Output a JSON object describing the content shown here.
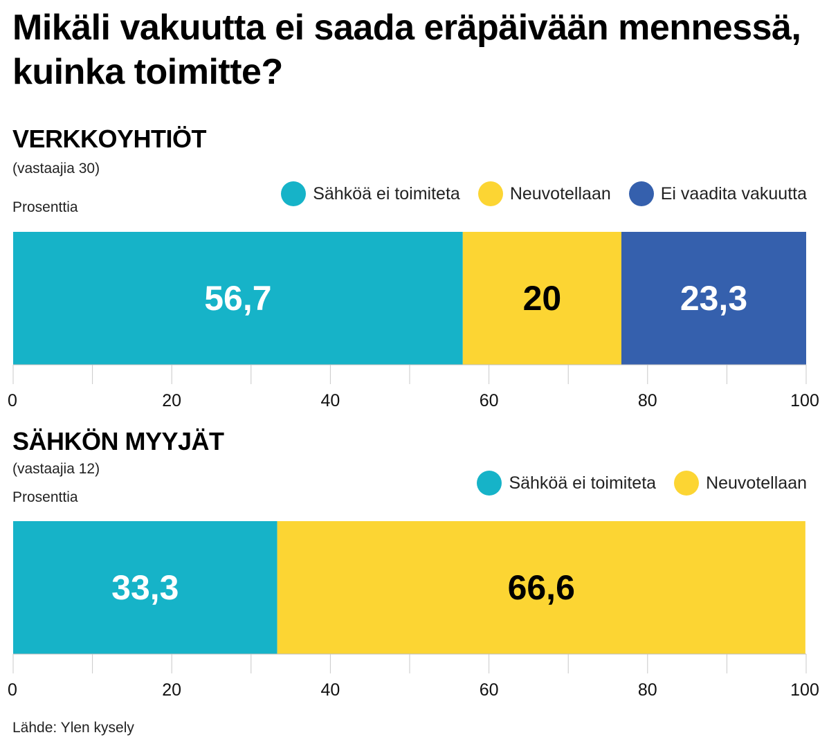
{
  "title": "Mikäli vakuutta ei saada eräpäivään mennessä, kuinka toimitte?",
  "source": "Lähde: Ylen kysely",
  "colors": {
    "teal": "#16b3c8",
    "yellow": "#fcd533",
    "blue": "#3560ad"
  },
  "chart_data": [
    {
      "type": "bar",
      "orientation": "horizontal-stacked",
      "title": "VERKKOYHTIÖT",
      "subtitle": "(vastaajia 30)",
      "xlabel": "Prosenttia",
      "xlim": [
        0,
        100
      ],
      "ticks": [
        "0",
        "20",
        "40",
        "60",
        "80",
        "100"
      ],
      "legend": [
        {
          "name": "Sähköä ei toimiteta",
          "color": "#16b3c8"
        },
        {
          "name": "Neuvotellaan",
          "color": "#fcd533"
        },
        {
          "name": "Ei vaadita vakuutta",
          "color": "#3560ad"
        }
      ],
      "segments": [
        {
          "name": "Sähköä ei toimiteta",
          "value": 56.7,
          "label": "56,7",
          "color": "#16b3c8",
          "text_color": "#ffffff"
        },
        {
          "name": "Neuvotellaan",
          "value": 20,
          "label": "20",
          "color": "#fcd533",
          "text_color": "#000000"
        },
        {
          "name": "Ei vaadita vakuutta",
          "value": 23.3,
          "label": "23,3",
          "color": "#3560ad",
          "text_color": "#ffffff"
        }
      ]
    },
    {
      "type": "bar",
      "orientation": "horizontal-stacked",
      "title": "SÄHKÖN MYYJÄT",
      "subtitle": "(vastaajia 12)",
      "xlabel": "Prosenttia",
      "xlim": [
        0,
        100
      ],
      "ticks": [
        "0",
        "20",
        "40",
        "60",
        "80",
        "100"
      ],
      "legend": [
        {
          "name": "Sähköä ei toimiteta",
          "color": "#16b3c8"
        },
        {
          "name": "Neuvotellaan",
          "color": "#fcd533"
        }
      ],
      "segments": [
        {
          "name": "Sähköä ei toimiteta",
          "value": 33.3,
          "label": "33,3",
          "color": "#16b3c8",
          "text_color": "#ffffff"
        },
        {
          "name": "Neuvotellaan",
          "value": 66.6,
          "label": "66,6",
          "color": "#fcd533",
          "text_color": "#000000"
        }
      ]
    }
  ]
}
